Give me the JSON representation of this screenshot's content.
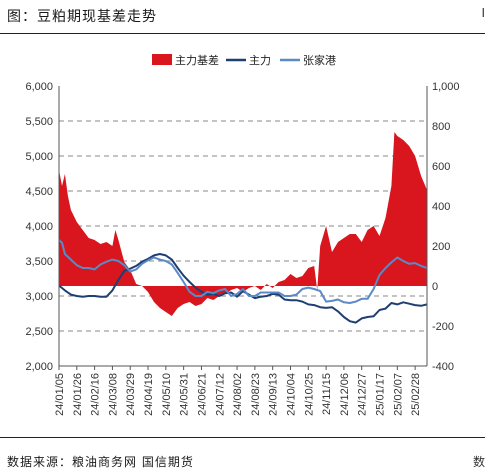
{
  "header": {
    "title": "图：豆粕期现基差走势",
    "edge_mark_top": "I"
  },
  "footer": {
    "source": "数据来源：粮油商务网  国信期货",
    "edge_mark_bottom": "数"
  },
  "chart_data": {
    "type": "line",
    "title": "",
    "xlabel": "",
    "ylabel": "",
    "ylabel_right": "",
    "left_axis": {
      "ticks": [
        2000,
        2500,
        3000,
        3500,
        4000,
        4500,
        5000,
        5500,
        6000
      ],
      "tick_labels": [
        "2,000",
        "2,500",
        "3,000",
        "3,500",
        "4,000",
        "4,500",
        "5,000",
        "5,500",
        "6,000"
      ],
      "ylim": [
        2000,
        6000
      ]
    },
    "right_axis": {
      "ticks": [
        -400,
        -200,
        0,
        200,
        400,
        600,
        800,
        1000
      ],
      "tick_labels": [
        "-400",
        "-200",
        "0",
        "200",
        "400",
        "600",
        "800",
        "1,000"
      ],
      "ylim": [
        -400,
        1000
      ]
    },
    "grid": "dashed horizontal",
    "legend_position": "top-center",
    "colors": {
      "basis": "#d9151e",
      "main": "#1f3f73",
      "zhangjiagang": "#5b8ac6"
    },
    "x_tick_labels": [
      "24/01/05",
      "24/01/26",
      "24/02/16",
      "24/03/08",
      "24/03/29",
      "24/04/19",
      "24/05/10",
      "24/05/31",
      "24/06/21",
      "24/07/12",
      "24/08/02",
      "24/08/23",
      "24/09/13",
      "24/10/04",
      "24/10/25",
      "24/11/15",
      "24/12/06",
      "24/12/27",
      "25/01/17",
      "25/02/07",
      "25/02/28"
    ],
    "x_positions": [
      0,
      3,
      6,
      9,
      12,
      15,
      18,
      21,
      24,
      27,
      30,
      33,
      36,
      39,
      42,
      45,
      48,
      51,
      54,
      57,
      60
    ],
    "x_range": [
      0,
      62
    ],
    "series": [
      {
        "name": "主力基差",
        "kind": "area",
        "axis": "right",
        "x": [
          0,
          0.5,
          1,
          1.5,
          2,
          3,
          4,
          5,
          6,
          7,
          8,
          9,
          9.5,
          10,
          11,
          12,
          13,
          14,
          15,
          16,
          17,
          18,
          19,
          20,
          21,
          22,
          23,
          24,
          25,
          26,
          27,
          28,
          29,
          30,
          31,
          32,
          33,
          34,
          35,
          36,
          37,
          38,
          39,
          40,
          41,
          42,
          43,
          43.5,
          44,
          45,
          46,
          47,
          48,
          49,
          50,
          51,
          52,
          53,
          54,
          55,
          56,
          56.5,
          57,
          58,
          59,
          60,
          61,
          62
        ],
        "values": [
          580,
          500,
          560,
          450,
          380,
          320,
          280,
          240,
          230,
          210,
          220,
          200,
          280,
          230,
          120,
          80,
          10,
          0,
          -30,
          -80,
          -110,
          -130,
          -150,
          -110,
          -90,
          -80,
          -100,
          -90,
          -60,
          -70,
          -50,
          -40,
          -20,
          -10,
          -30,
          -10,
          0,
          -20,
          10,
          -10,
          20,
          30,
          60,
          40,
          50,
          90,
          100,
          -20,
          200,
          300,
          170,
          220,
          240,
          260,
          260,
          220,
          280,
          300,
          250,
          340,
          500,
          770,
          750,
          730,
          700,
          650,
          550,
          480
        ]
      },
      {
        "name": "主力",
        "kind": "line",
        "axis": "left",
        "x": [
          0,
          1,
          2,
          3,
          4,
          5,
          6,
          7,
          8,
          9,
          10,
          11,
          12,
          13,
          14,
          15,
          16,
          17,
          18,
          19,
          20,
          21,
          22,
          23,
          24,
          25,
          26,
          27,
          28,
          29,
          30,
          31,
          32,
          33,
          34,
          35,
          36,
          37,
          38,
          39,
          40,
          41,
          42,
          43,
          44,
          45,
          46,
          47,
          48,
          49,
          50,
          51,
          52,
          53,
          54,
          55,
          56,
          57,
          58,
          59,
          60,
          61,
          62
        ],
        "values": [
          3150,
          3080,
          3020,
          3000,
          2990,
          3000,
          3000,
          2990,
          2990,
          3080,
          3230,
          3360,
          3390,
          3430,
          3490,
          3530,
          3580,
          3600,
          3580,
          3520,
          3400,
          3290,
          3200,
          3120,
          3060,
          3020,
          3030,
          3000,
          3040,
          3050,
          2990,
          3070,
          3020,
          2970,
          2990,
          3000,
          3030,
          3020,
          2950,
          2940,
          2940,
          2920,
          2880,
          2870,
          2840,
          2830,
          2840,
          2780,
          2700,
          2640,
          2620,
          2680,
          2700,
          2710,
          2800,
          2820,
          2900,
          2880,
          2910,
          2890,
          2870,
          2860,
          2880
        ]
      },
      {
        "name": "张家港",
        "kind": "line",
        "axis": "left",
        "x": [
          0,
          0.5,
          1,
          2,
          3,
          4,
          5,
          6,
          7,
          8,
          9,
          10,
          11,
          12,
          13,
          14,
          15,
          16,
          17,
          18,
          19,
          20,
          21,
          22,
          23,
          24,
          25,
          26,
          27,
          28,
          29,
          30,
          31,
          32,
          33,
          34,
          35,
          36,
          37,
          38,
          39,
          40,
          41,
          42,
          43,
          44,
          45,
          46,
          47,
          48,
          49,
          50,
          51,
          52,
          53,
          54,
          55,
          56,
          57,
          58,
          59,
          60,
          61,
          62
        ],
        "values": [
          3800,
          3760,
          3600,
          3520,
          3440,
          3400,
          3400,
          3380,
          3450,
          3490,
          3520,
          3500,
          3440,
          3350,
          3380,
          3460,
          3510,
          3550,
          3520,
          3500,
          3450,
          3330,
          3200,
          3060,
          3000,
          3000,
          3060,
          3040,
          3080,
          3100,
          3000,
          3030,
          3100,
          3000,
          3000,
          3050,
          3050,
          3050,
          3050,
          3000,
          3000,
          3020,
          3100,
          3120,
          3100,
          3070,
          2920,
          2930,
          2950,
          2910,
          2900,
          2920,
          2960,
          2960,
          3100,
          3300,
          3400,
          3480,
          3550,
          3500,
          3460,
          3470,
          3430,
          3400
        ]
      }
    ]
  }
}
